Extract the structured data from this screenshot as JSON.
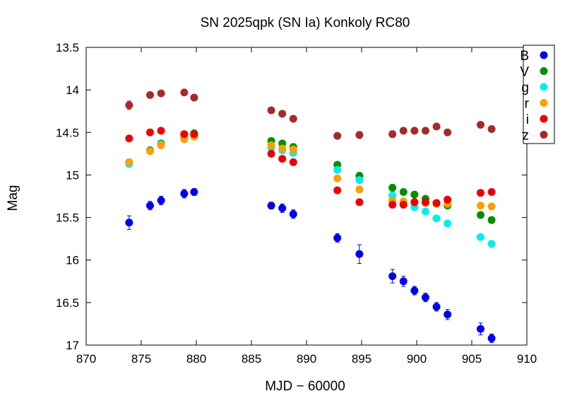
{
  "chart_data": {
    "type": "scatter",
    "title": "SN 2025qpk (SN Ia) Konkoly RC80",
    "xlabel": "MJD − 60000",
    "ylabel": "Mag",
    "xlim": [
      870,
      910
    ],
    "ylim": [
      17,
      13.5
    ],
    "y_inverted": true,
    "x_ticks": [
      870,
      875,
      880,
      885,
      890,
      895,
      900,
      905,
      910
    ],
    "y_ticks": [
      13.5,
      14,
      14.5,
      15,
      15.5,
      16,
      16.5,
      17
    ],
    "y_tick_labels": [
      "13.5",
      "14",
      "14.5",
      "15",
      "15.5",
      "16",
      "16.5",
      "17"
    ],
    "grid": false,
    "legend_position": "top-right",
    "series": [
      {
        "name": "B",
        "color": "#0000ee",
        "x": [
          873.9,
          875.8,
          876.8,
          878.9,
          879.8,
          886.8,
          887.8,
          888.8,
          892.8,
          894.8,
          897.8,
          898.8,
          899.8,
          900.8,
          901.8,
          902.8,
          905.8,
          906.8
        ],
        "y": [
          15.56,
          15.36,
          15.3,
          15.22,
          15.2,
          15.36,
          15.39,
          15.46,
          15.74,
          15.93,
          16.19,
          16.25,
          16.36,
          16.44,
          16.55,
          16.64,
          16.81,
          16.92
        ],
        "yerr": [
          0.08,
          0.05,
          0.05,
          0.05,
          0.04,
          0.04,
          0.05,
          0.05,
          0.05,
          0.11,
          0.08,
          0.06,
          0.05,
          0.05,
          0.05,
          0.06,
          0.07,
          0.05
        ]
      },
      {
        "name": "V",
        "color": "#009000",
        "x": [
          873.9,
          875.8,
          876.8,
          878.9,
          879.8,
          886.8,
          887.8,
          888.8,
          892.8,
          894.8,
          897.8,
          898.8,
          899.8,
          900.8,
          901.8,
          902.8,
          905.8,
          906.8
        ],
        "y": [
          14.85,
          14.71,
          14.63,
          14.55,
          14.51,
          14.6,
          14.63,
          14.67,
          14.88,
          15.01,
          15.15,
          15.2,
          15.23,
          15.28,
          15.33,
          15.36,
          15.47,
          15.53
        ],
        "yerr": [
          0.02,
          0.02,
          0.02,
          0.02,
          0.02,
          0.02,
          0.02,
          0.02,
          0.03,
          0.04,
          0.04,
          0.02,
          0.02,
          0.02,
          0.02,
          0.02,
          0.02,
          0.02
        ]
      },
      {
        "name": "g",
        "color": "#00eeee",
        "x": [
          873.9,
          875.8,
          876.8,
          878.9,
          879.8,
          886.8,
          887.8,
          888.8,
          892.8,
          894.8,
          897.8,
          898.8,
          899.8,
          900.8,
          901.8,
          902.8,
          905.8,
          906.8
        ],
        "y": [
          14.87,
          14.72,
          14.64,
          14.56,
          14.54,
          14.68,
          14.71,
          14.74,
          14.94,
          15.06,
          15.24,
          15.32,
          15.38,
          15.43,
          15.51,
          15.57,
          15.73,
          15.81
        ],
        "yerr": [
          0.02,
          0.02,
          0.02,
          0.02,
          0.02,
          0.02,
          0.02,
          0.02,
          0.02,
          0.03,
          0.02,
          0.02,
          0.02,
          0.02,
          0.02,
          0.02,
          0.02,
          0.02
        ]
      },
      {
        "name": "r",
        "color": "#ff9f00",
        "x": [
          873.9,
          875.8,
          876.8,
          878.9,
          879.8,
          886.8,
          887.8,
          888.8,
          892.8,
          894.8,
          897.8,
          898.8,
          899.8,
          900.8,
          901.8,
          902.8,
          905.8,
          906.8
        ],
        "y": [
          14.85,
          14.72,
          14.65,
          14.58,
          14.55,
          14.65,
          14.69,
          14.7,
          15.04,
          15.17,
          15.3,
          15.31,
          15.32,
          15.33,
          15.34,
          15.34,
          15.36,
          15.37
        ],
        "yerr": [
          0.02,
          0.02,
          0.02,
          0.02,
          0.02,
          0.02,
          0.02,
          0.02,
          0.02,
          0.02,
          0.02,
          0.02,
          0.02,
          0.02,
          0.02,
          0.02,
          0.02,
          0.02
        ]
      },
      {
        "name": "i",
        "color": "#ee0000",
        "x": [
          873.9,
          875.8,
          876.8,
          878.9,
          879.8,
          886.8,
          887.8,
          888.8,
          892.8,
          894.8,
          897.8,
          898.8,
          899.8,
          900.8,
          901.8,
          902.8,
          905.8,
          906.8
        ],
        "y": [
          14.57,
          14.5,
          14.48,
          14.52,
          14.52,
          14.75,
          14.81,
          14.85,
          15.18,
          15.32,
          15.35,
          15.35,
          15.32,
          15.32,
          15.33,
          15.29,
          15.21,
          15.2
        ],
        "yerr": [
          0.02,
          0.02,
          0.02,
          0.02,
          0.02,
          0.02,
          0.02,
          0.02,
          0.02,
          0.02,
          0.03,
          0.02,
          0.02,
          0.02,
          0.02,
          0.03,
          0.02,
          0.02
        ]
      },
      {
        "name": "z",
        "color": "#a52a2a",
        "x": [
          873.9,
          875.8,
          876.8,
          878.9,
          879.8,
          886.8,
          887.8,
          888.8,
          892.8,
          894.8,
          897.8,
          898.8,
          899.8,
          900.8,
          901.8,
          902.8,
          905.8,
          906.8
        ],
        "y": [
          14.18,
          14.06,
          14.04,
          14.03,
          14.09,
          14.24,
          14.28,
          14.34,
          14.54,
          14.53,
          14.52,
          14.48,
          14.48,
          14.48,
          14.43,
          14.5,
          14.41,
          14.46
        ],
        "yerr": [
          0.05,
          0.02,
          0.02,
          0.02,
          0.02,
          0.02,
          0.02,
          0.02,
          0.03,
          0.04,
          0.04,
          0.03,
          0.02,
          0.02,
          0.02,
          0.02,
          0.03,
          0.03
        ]
      }
    ]
  }
}
